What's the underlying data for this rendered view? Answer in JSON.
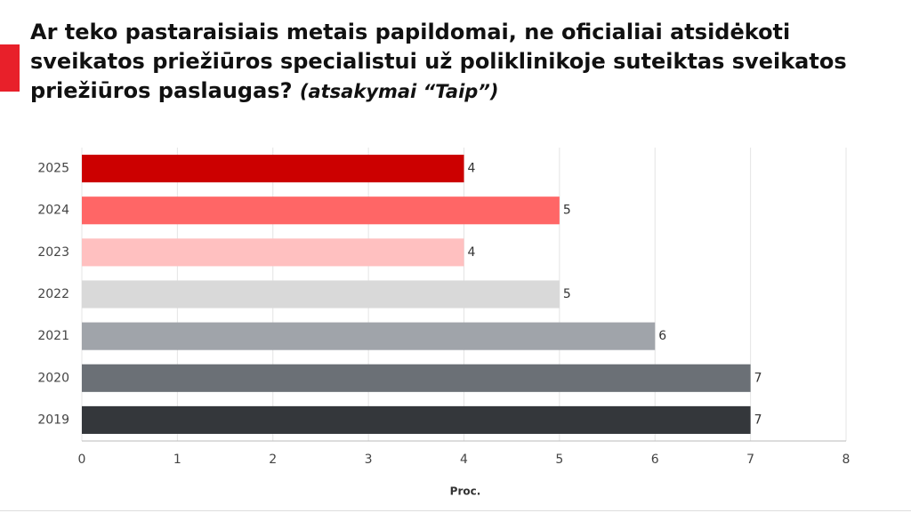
{
  "chart_data": {
    "type": "bar",
    "orientation": "horizontal",
    "title": "Ar teko pastaraisiais metais papildomai, ne oficialiai atsidėkoti sveikatos priežiūros specialistui už poliklinikoje suteiktas sveikatos priežiūros paslaugas?",
    "title_note": "(atsakymai “Taip”)",
    "x_label": "Proc.",
    "categories": [
      "2025",
      "2024",
      "2023",
      "2022",
      "2021",
      "2020",
      "2019"
    ],
    "values": [
      4,
      5,
      4,
      5,
      6,
      7,
      7
    ],
    "colors": [
      "#cc0000",
      "#ff6666",
      "#ffc0c0",
      "#d9d9d9",
      "#a0a4aa",
      "#6b7076",
      "#34373b"
    ],
    "xlim": [
      0,
      8
    ],
    "xticks": [
      0,
      1,
      2,
      3,
      4,
      5,
      6,
      7,
      8
    ],
    "grid": true
  }
}
